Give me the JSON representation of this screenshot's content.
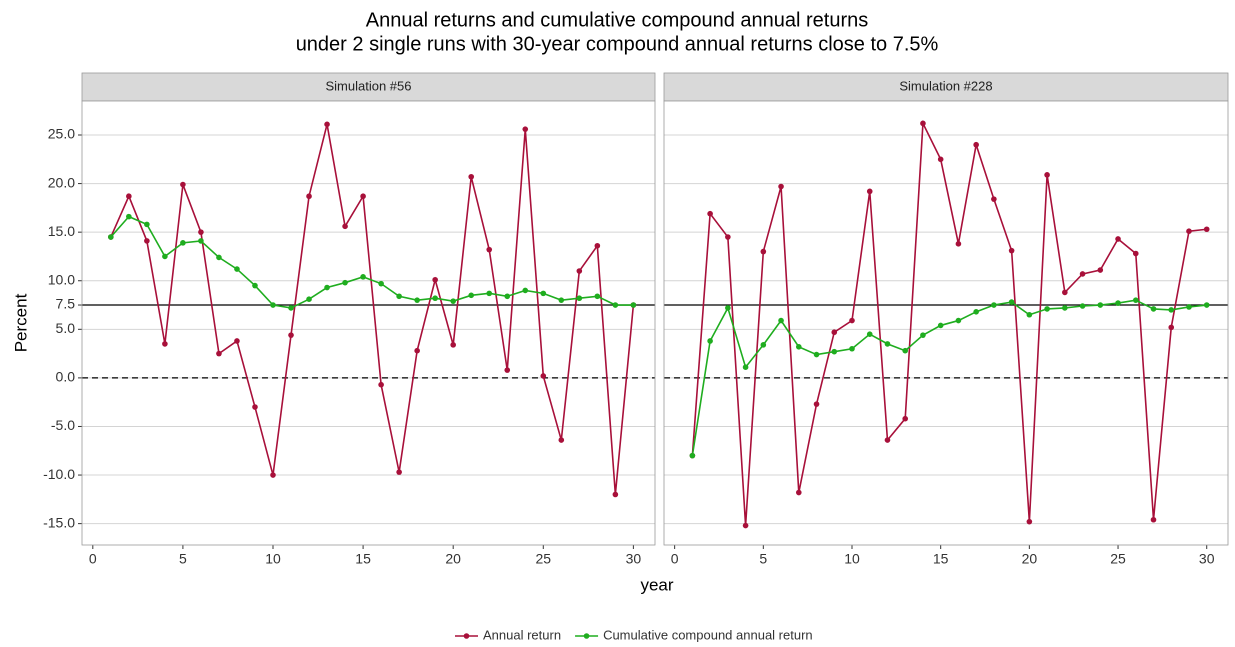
{
  "title": [
    "Annual returns and cumulative compound annual returns",
    "under 2 single runs with 30-year compound annual returns close to 7.5%"
  ],
  "xlabel": "year",
  "ylabel": "Percent",
  "ylim": [
    -17.2,
    28.5
  ],
  "yticks": [
    {
      "value": -15,
      "label": "-15.0"
    },
    {
      "value": -10,
      "label": "-10.0"
    },
    {
      "value": -5,
      "label": "-5.0"
    },
    {
      "value": 0,
      "label": "0.0"
    },
    {
      "value": 5,
      "label": "5.0"
    },
    7.5,
    {
      "value": 10,
      "label": "10.0"
    },
    {
      "value": 15,
      "label": "15.0"
    },
    {
      "value": 20,
      "label": "20.0"
    },
    {
      "value": 25,
      "label": "25.0"
    }
  ],
  "grid": true,
  "reference_lines": [
    {
      "value": 7.5,
      "style": "solid"
    },
    {
      "value": 0,
      "style": "dashed"
    }
  ],
  "legend_position": "bottom",
  "chart_data": [
    {
      "type": "line",
      "title": "Simulation #56",
      "xlim": [
        -0.6,
        31.2
      ],
      "xticks": [
        0,
        5,
        10,
        15,
        20,
        25,
        30
      ],
      "x": [
        1,
        2,
        3,
        4,
        5,
        6,
        7,
        8,
        9,
        10,
        11,
        12,
        13,
        14,
        15,
        16,
        17,
        18,
        19,
        20,
        21,
        22,
        23,
        24,
        25,
        26,
        27,
        28,
        29,
        30
      ],
      "series": [
        {
          "name": "Annual return",
          "color": "#a8103a",
          "values": [
            14.5,
            18.7,
            14.1,
            3.5,
            19.9,
            15.0,
            2.5,
            3.8,
            -3.0,
            -10.0,
            4.4,
            18.7,
            26.1,
            15.6,
            18.7,
            -0.7,
            -9.7,
            2.8,
            10.1,
            3.4,
            20.7,
            13.2,
            0.8,
            25.6,
            0.2,
            -6.4,
            11.0,
            13.6,
            -12.0,
            7.5
          ]
        },
        {
          "name": "Cumulative compound annual return",
          "color": "#1fad1f",
          "values": [
            14.5,
            16.6,
            15.8,
            12.5,
            13.9,
            14.1,
            12.4,
            11.2,
            9.5,
            7.5,
            7.2,
            8.1,
            9.3,
            9.8,
            10.4,
            9.7,
            8.4,
            8.0,
            8.2,
            7.9,
            8.5,
            8.7,
            8.4,
            9.0,
            8.7,
            8.0,
            8.2,
            8.4,
            7.5,
            7.5
          ]
        }
      ]
    },
    {
      "type": "line",
      "title": "Simulation #228",
      "xlim": [
        -0.6,
        31.2
      ],
      "xticks": [
        0,
        5,
        10,
        15,
        20,
        25,
        30
      ],
      "x": [
        1,
        2,
        3,
        4,
        5,
        6,
        7,
        8,
        9,
        10,
        11,
        12,
        13,
        14,
        15,
        16,
        17,
        18,
        19,
        20,
        21,
        22,
        23,
        24,
        25,
        26,
        27,
        28,
        29,
        30
      ],
      "series": [
        {
          "color": "#a8103a",
          "values": [
            -8.0,
            16.9,
            14.5,
            -15.2,
            13.0,
            19.7,
            -11.8,
            -2.7,
            4.7,
            5.9,
            19.2,
            -6.4,
            -4.2,
            26.2,
            22.5,
            13.8,
            24.0,
            18.4,
            13.1,
            -14.8,
            20.9,
            8.8,
            10.7,
            11.1,
            14.3,
            12.8,
            -14.6,
            5.2,
            15.1,
            15.3
          ]
        },
        {
          "color": "#1fad1f",
          "values": [
            -8.0,
            3.8,
            7.2,
            1.1,
            3.4,
            5.9,
            3.2,
            2.4,
            2.7,
            3.0,
            4.5,
            3.5,
            2.8,
            4.4,
            5.4,
            5.9,
            6.8,
            7.5,
            7.8,
            6.5,
            7.1,
            7.2,
            7.4,
            7.5,
            7.7,
            8.0,
            7.1,
            7.0,
            7.3,
            7.5
          ]
        }
      ]
    }
  ]
}
